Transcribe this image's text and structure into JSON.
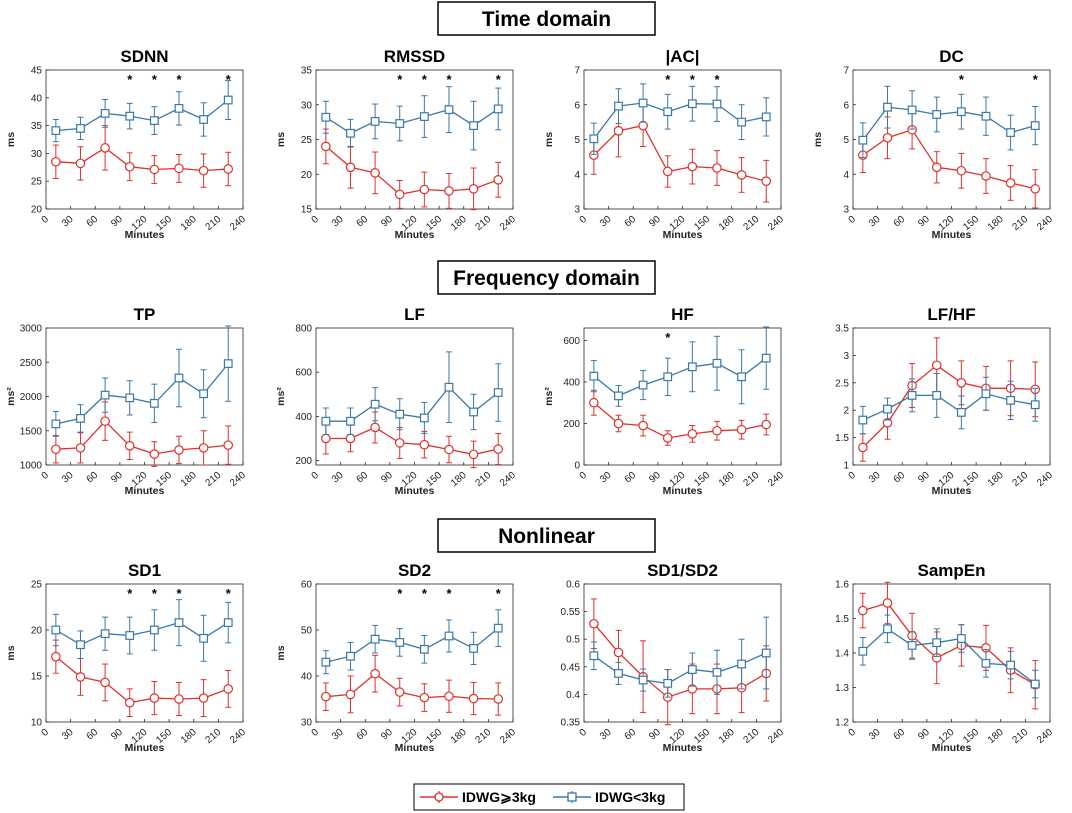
{
  "colors": {
    "red": "#e0302a",
    "blue": "#3a78a8"
  },
  "sections": [
    {
      "key": "time",
      "title": "Time domain"
    },
    {
      "key": "freq",
      "title": "Frequency domain"
    },
    {
      "key": "nonlin",
      "title": "Nonlinear"
    }
  ],
  "legend": {
    "red_label": "IDWG⩾3kg",
    "blue_label": "IDWG<3kg"
  },
  "chart_data": [
    {
      "type": "line",
      "title": "SDNN",
      "xlabel": "Minutes",
      "ylabel": "ms",
      "xlim": [
        0,
        240
      ],
      "xticks": [
        0,
        30,
        60,
        90,
        120,
        150,
        180,
        210,
        240
      ],
      "ylim": [
        20,
        45
      ],
      "yticks": [
        20,
        25,
        30,
        35,
        40,
        45
      ],
      "ytick_labels": [
        "20",
        "25",
        "30",
        "35",
        "40",
        "45"
      ],
      "x": [
        12,
        42,
        72,
        102,
        132,
        162,
        192,
        222
      ],
      "series": [
        {
          "name": "IDWG⩾3kg",
          "values": [
            28.5,
            28.2,
            31.0,
            27.6,
            27.1,
            27.3,
            26.9,
            27.2
          ],
          "err": [
            3,
            3,
            4,
            2.5,
            2.5,
            2.5,
            3,
            3
          ]
        },
        {
          "name": "IDWG<3kg",
          "values": [
            34.1,
            34.5,
            37.2,
            36.7,
            35.9,
            38.1,
            36.1,
            39.6
          ],
          "err": [
            2,
            2,
            2.5,
            2.3,
            2.5,
            3,
            3,
            3.5
          ]
        }
      ],
      "stars": [
        102,
        132,
        162,
        222
      ]
    },
    {
      "type": "line",
      "title": "RMSSD",
      "xlabel": "Minutes",
      "ylabel": "ms",
      "xlim": [
        0,
        240
      ],
      "xticks": [
        0,
        30,
        60,
        90,
        120,
        150,
        180,
        210,
        240
      ],
      "ylim": [
        15,
        35
      ],
      "yticks": [
        15,
        20,
        25,
        30,
        35
      ],
      "ytick_labels": [
        "15",
        "20",
        "25",
        "30",
        "35"
      ],
      "x": [
        12,
        42,
        72,
        102,
        132,
        162,
        192,
        222
      ],
      "series": [
        {
          "name": "IDWG⩾3kg",
          "values": [
            24.0,
            21.0,
            20.2,
            17.1,
            17.8,
            17.6,
            17.9,
            19.2
          ],
          "err": [
            2.5,
            3,
            3,
            2,
            2.5,
            2.5,
            3,
            2.5
          ]
        },
        {
          "name": "IDWG<3kg",
          "values": [
            28.2,
            25.9,
            27.6,
            27.3,
            28.3,
            29.3,
            27.0,
            29.4
          ],
          "err": [
            2.3,
            2,
            2.5,
            2.5,
            3,
            3.3,
            3.5,
            3
          ]
        }
      ],
      "stars": [
        102,
        132,
        162,
        222
      ]
    },
    {
      "type": "line",
      "title": "|AC|",
      "xlabel": "Minutes",
      "ylabel": "ms",
      "xlim": [
        0,
        240
      ],
      "xticks": [
        0,
        30,
        60,
        90,
        120,
        150,
        180,
        210,
        240
      ],
      "ylim": [
        3,
        7
      ],
      "yticks": [
        3,
        4,
        5,
        6,
        7
      ],
      "ytick_labels": [
        "3",
        "4",
        "5",
        "6",
        "7"
      ],
      "x": [
        12,
        42,
        72,
        102,
        132,
        162,
        192,
        222
      ],
      "series": [
        {
          "name": "IDWG⩾3kg",
          "values": [
            4.55,
            5.25,
            5.4,
            4.08,
            4.22,
            4.18,
            3.98,
            3.8
          ],
          "err": [
            0.55,
            0.75,
            0.6,
            0.45,
            0.5,
            0.5,
            0.5,
            0.6
          ]
        },
        {
          "name": "IDWG<3kg",
          "values": [
            5.02,
            5.96,
            6.05,
            5.8,
            6.03,
            6.02,
            5.5,
            5.65
          ],
          "err": [
            0.45,
            0.5,
            0.55,
            0.5,
            0.5,
            0.5,
            0.5,
            0.55
          ]
        }
      ],
      "stars": [
        102,
        132,
        162
      ]
    },
    {
      "type": "line",
      "title": "DC",
      "xlabel": "Minutes",
      "ylabel": "ms",
      "xlim": [
        0,
        240
      ],
      "xticks": [
        0,
        30,
        60,
        90,
        120,
        150,
        180,
        210,
        240
      ],
      "ylim": [
        3,
        7
      ],
      "yticks": [
        3,
        4,
        5,
        6,
        7
      ],
      "ytick_labels": [
        "3",
        "4",
        "5",
        "6",
        "7"
      ],
      "x": [
        12,
        42,
        72,
        102,
        132,
        162,
        192,
        222
      ],
      "series": [
        {
          "name": "IDWG⩾3kg",
          "values": [
            4.55,
            5.05,
            5.28,
            4.2,
            4.1,
            3.95,
            3.75,
            3.58
          ],
          "err": [
            0.5,
            0.6,
            0.55,
            0.45,
            0.5,
            0.5,
            0.5,
            0.55
          ]
        },
        {
          "name": "IDWG<3kg",
          "values": [
            4.98,
            5.93,
            5.85,
            5.72,
            5.8,
            5.67,
            5.2,
            5.4
          ],
          "err": [
            0.5,
            0.6,
            0.55,
            0.5,
            0.5,
            0.55,
            0.5,
            0.55
          ]
        }
      ],
      "stars": [
        132,
        222
      ]
    },
    {
      "type": "line",
      "title": "TP",
      "xlabel": "Minutes",
      "ylabel": "ms²",
      "xlim": [
        0,
        240
      ],
      "xticks": [
        0,
        30,
        60,
        90,
        120,
        150,
        180,
        210,
        240
      ],
      "ylim": [
        1000,
        3000
      ],
      "yticks": [
        1000,
        1500,
        2000,
        2500,
        3000
      ],
      "ytick_labels": [
        "1000",
        "1500",
        "2000",
        "2500",
        "3000"
      ],
      "x": [
        12,
        42,
        72,
        102,
        132,
        162,
        192,
        222
      ],
      "series": [
        {
          "name": "IDWG⩾3kg",
          "values": [
            1230,
            1250,
            1640,
            1280,
            1160,
            1220,
            1250,
            1290
          ],
          "err": [
            200,
            220,
            280,
            200,
            180,
            200,
            250,
            280
          ]
        },
        {
          "name": "IDWG<3kg",
          "values": [
            1600,
            1680,
            2020,
            1980,
            1900,
            2270,
            2040,
            2480
          ],
          "err": [
            180,
            200,
            250,
            250,
            280,
            420,
            350,
            550
          ]
        }
      ],
      "stars": []
    },
    {
      "type": "line",
      "title": "LF",
      "xlabel": "Minutes",
      "ylabel": "ms²",
      "xlim": [
        0,
        240
      ],
      "xticks": [
        0,
        30,
        60,
        90,
        120,
        150,
        180,
        210,
        240
      ],
      "ylim": [
        180,
        800
      ],
      "yticks": [
        200,
        400,
        600,
        800
      ],
      "ytick_labels": [
        "200",
        "400",
        "600",
        "800"
      ],
      "x": [
        12,
        42,
        72,
        102,
        132,
        162,
        192,
        222
      ],
      "series": [
        {
          "name": "IDWG⩾3kg",
          "values": [
            300,
            300,
            350,
            280,
            272,
            250,
            228,
            252
          ],
          "err": [
            70,
            60,
            70,
            70,
            60,
            60,
            60,
            70
          ]
        },
        {
          "name": "IDWG<3kg",
          "values": [
            378,
            378,
            455,
            410,
            393,
            532,
            420,
            508
          ],
          "err": [
            60,
            60,
            75,
            70,
            70,
            160,
            80,
            130
          ]
        }
      ],
      "stars": []
    },
    {
      "type": "line",
      "title": "HF",
      "xlabel": "Minutes",
      "ylabel": "ms²",
      "xlim": [
        0,
        240
      ],
      "xticks": [
        0,
        30,
        60,
        90,
        120,
        150,
        180,
        210,
        240
      ],
      "ylim": [
        0,
        660
      ],
      "yticks": [
        0,
        200,
        400,
        600
      ],
      "ytick_labels": [
        "0",
        "200",
        "400",
        "600"
      ],
      "x": [
        12,
        42,
        72,
        102,
        132,
        162,
        192,
        222
      ],
      "series": [
        {
          "name": "IDWG⩾3kg",
          "values": [
            300,
            200,
            190,
            130,
            150,
            165,
            170,
            195
          ],
          "err": [
            60,
            40,
            50,
            35,
            40,
            45,
            45,
            50
          ]
        },
        {
          "name": "IDWG<3kg",
          "values": [
            428,
            333,
            385,
            425,
            473,
            490,
            425,
            515
          ],
          "err": [
            75,
            50,
            70,
            90,
            120,
            130,
            130,
            150
          ]
        }
      ],
      "stars": [
        102
      ]
    },
    {
      "type": "line",
      "title": "LF/HF",
      "xlabel": "Minutes",
      "ylabel": "",
      "xlim": [
        0,
        240
      ],
      "xticks": [
        0,
        30,
        60,
        90,
        120,
        150,
        180,
        210,
        240
      ],
      "ylim": [
        1,
        3.5
      ],
      "yticks": [
        1,
        1.5,
        2,
        2.5,
        3,
        3.5
      ],
      "ytick_labels": [
        "1",
        "1.5",
        "2",
        "2.5",
        "3",
        "3.5"
      ],
      "x": [
        12,
        42,
        72,
        102,
        132,
        162,
        192,
        222
      ],
      "series": [
        {
          "name": "IDWG⩾3kg",
          "values": [
            1.32,
            1.77,
            2.45,
            2.82,
            2.5,
            2.4,
            2.4,
            2.38
          ],
          "err": [
            0.25,
            0.3,
            0.4,
            0.5,
            0.4,
            0.4,
            0.5,
            0.5
          ]
        },
        {
          "name": "IDWG<3kg",
          "values": [
            1.82,
            2.02,
            2.27,
            2.27,
            1.96,
            2.3,
            2.18,
            2.1
          ],
          "err": [
            0.25,
            0.2,
            0.3,
            0.4,
            0.3,
            0.3,
            0.35,
            0.3
          ]
        }
      ],
      "stars": []
    },
    {
      "type": "line",
      "title": "SD1",
      "xlabel": "Minutes",
      "ylabel": "ms",
      "xlim": [
        0,
        240
      ],
      "xticks": [
        0,
        30,
        60,
        90,
        120,
        150,
        180,
        210,
        240
      ],
      "ylim": [
        10,
        25
      ],
      "yticks": [
        10,
        15,
        20,
        25
      ],
      "ytick_labels": [
        "10",
        "15",
        "20",
        "25"
      ],
      "x": [
        12,
        42,
        72,
        102,
        132,
        162,
        192,
        222
      ],
      "series": [
        {
          "name": "IDWG⩾3kg",
          "values": [
            17.1,
            14.9,
            14.3,
            12.1,
            12.6,
            12.5,
            12.6,
            13.6
          ],
          "err": [
            1.8,
            2,
            2,
            1.5,
            1.8,
            1.8,
            2,
            2
          ]
        },
        {
          "name": "IDWG<3kg",
          "values": [
            20.0,
            18.4,
            19.6,
            19.4,
            20.0,
            20.8,
            19.1,
            20.8
          ],
          "err": [
            1.7,
            1.5,
            1.8,
            2,
            2.2,
            2.5,
            2.5,
            2.2
          ]
        }
      ],
      "stars": [
        102,
        132,
        162,
        222
      ]
    },
    {
      "type": "line",
      "title": "SD2",
      "xlabel": "Minutes",
      "ylabel": "ms",
      "xlim": [
        0,
        240
      ],
      "xticks": [
        0,
        30,
        60,
        90,
        120,
        150,
        180,
        210,
        240
      ],
      "ylim": [
        30,
        60
      ],
      "yticks": [
        30,
        40,
        50,
        60
      ],
      "ytick_labels": [
        "30",
        "40",
        "50",
        "60"
      ],
      "x": [
        12,
        42,
        72,
        102,
        132,
        162,
        192,
        222
      ],
      "series": [
        {
          "name": "IDWG⩾3kg",
          "values": [
            35.5,
            36.0,
            40.5,
            36.5,
            35.3,
            35.6,
            35.1,
            35.0
          ],
          "err": [
            3,
            4,
            4,
            3,
            3,
            3.5,
            3.5,
            3.5
          ]
        },
        {
          "name": "IDWG<3kg",
          "values": [
            43.0,
            44.3,
            48.0,
            47.3,
            45.8,
            48.7,
            46.0,
            50.4
          ],
          "err": [
            2.5,
            3,
            3,
            3,
            3,
            3.5,
            3.5,
            4
          ]
        }
      ],
      "stars": [
        102,
        132,
        162,
        222
      ]
    },
    {
      "type": "line",
      "title": "SD1/SD2",
      "xlabel": "Minutes",
      "ylabel": "",
      "xlim": [
        0,
        240
      ],
      "xticks": [
        0,
        30,
        60,
        90,
        120,
        150,
        180,
        210,
        240
      ],
      "ylim": [
        0.35,
        0.6
      ],
      "yticks": [
        0.35,
        0.4,
        0.45,
        0.5,
        0.55,
        0.6
      ],
      "ytick_labels": [
        "0.35",
        "0.4",
        "0.45",
        "0.5",
        "0.55",
        "0.6"
      ],
      "x": [
        12,
        42,
        72,
        102,
        132,
        162,
        192,
        222
      ],
      "series": [
        {
          "name": "IDWG⩾3kg",
          "values": [
            0.528,
            0.476,
            0.432,
            0.395,
            0.41,
            0.41,
            0.412,
            0.438
          ],
          "err": [
            0.045,
            0.04,
            0.065,
            0.05,
            0.045,
            0.045,
            0.045,
            0.05
          ]
        },
        {
          "name": "IDWG<3kg",
          "values": [
            0.47,
            0.438,
            0.426,
            0.42,
            0.445,
            0.44,
            0.455,
            0.475
          ],
          "err": [
            0.025,
            0.02,
            0.02,
            0.025,
            0.03,
            0.04,
            0.045,
            0.065
          ]
        }
      ],
      "stars": []
    },
    {
      "type": "line",
      "title": "SampEn",
      "xlabel": "Minutes",
      "ylabel": "",
      "xlim": [
        0,
        240
      ],
      "xticks": [
        0,
        30,
        60,
        90,
        120,
        150,
        180,
        210,
        240
      ],
      "ylim": [
        1.2,
        1.6
      ],
      "yticks": [
        1.2,
        1.3,
        1.4,
        1.5,
        1.6
      ],
      "ytick_labels": [
        "1.2",
        "1.3",
        "1.4",
        "1.5",
        "1.6"
      ],
      "x": [
        12,
        42,
        72,
        102,
        132,
        162,
        192,
        222
      ],
      "series": [
        {
          "name": "IDWG⩾3kg",
          "values": [
            1.523,
            1.545,
            1.45,
            1.386,
            1.422,
            1.415,
            1.35,
            1.308
          ],
          "err": [
            0.05,
            0.06,
            0.065,
            0.075,
            0.06,
            0.065,
            0.065,
            0.07
          ]
        },
        {
          "name": "IDWG<3kg",
          "values": [
            1.405,
            1.47,
            1.422,
            1.43,
            1.442,
            1.37,
            1.365,
            1.31
          ],
          "err": [
            0.04,
            0.04,
            0.04,
            0.04,
            0.04,
            0.04,
            0.04,
            0.04
          ]
        }
      ],
      "stars": []
    }
  ]
}
